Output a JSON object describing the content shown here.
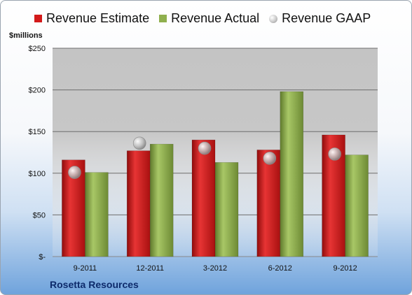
{
  "chart_data": {
    "type": "bar",
    "categories": [
      "9-2011",
      "12-2011",
      "3-2012",
      "6-2012",
      "9-2012"
    ],
    "series": [
      {
        "name": "Revenue Estimate",
        "kind": "bar",
        "color": "#d31a1a",
        "values": [
          116,
          127,
          140,
          128,
          146
        ]
      },
      {
        "name": "Revenue Actual",
        "kind": "bar",
        "color": "#8fb04e",
        "values": [
          101,
          135,
          113,
          198,
          122
        ]
      },
      {
        "name": "Revenue GAAP",
        "kind": "marker",
        "color": "#b8b8b8",
        "values": [
          101,
          136,
          130,
          118,
          123
        ]
      }
    ],
    "ylabel": "$millions",
    "ylim": [
      0,
      250
    ],
    "yticks": [
      0,
      50,
      100,
      150,
      200,
      250
    ],
    "ytick_labels": [
      "$-",
      "$50",
      "$100",
      "$150",
      "$200",
      "$250"
    ],
    "grid": true,
    "legend_position": "top"
  },
  "footer": {
    "company": "Rosetta Resources"
  }
}
